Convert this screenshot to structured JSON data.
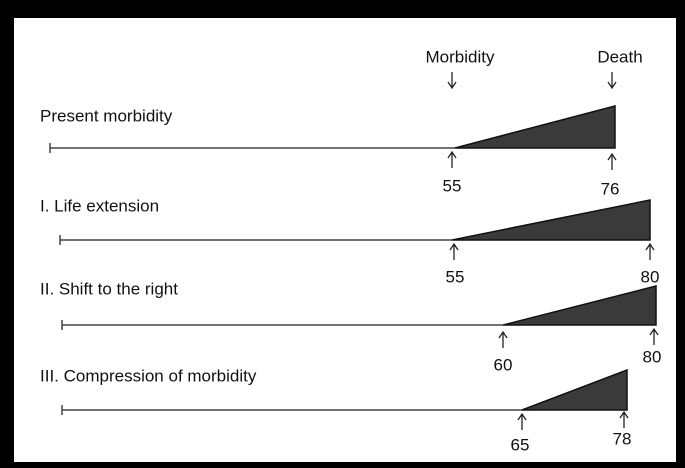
{
  "headers": {
    "morbidity": "Morbidity",
    "death": "Death"
  },
  "rows": [
    {
      "label": "Present morbidity",
      "onset": "55",
      "death": "76"
    },
    {
      "label": "I.  Life extension",
      "onset": "55",
      "death": "80"
    },
    {
      "label": "II.  Shift to the right",
      "onset": "60",
      "death": "80"
    },
    {
      "label": "III.  Compression of morbidity",
      "onset": "65",
      "death": "78"
    }
  ]
}
